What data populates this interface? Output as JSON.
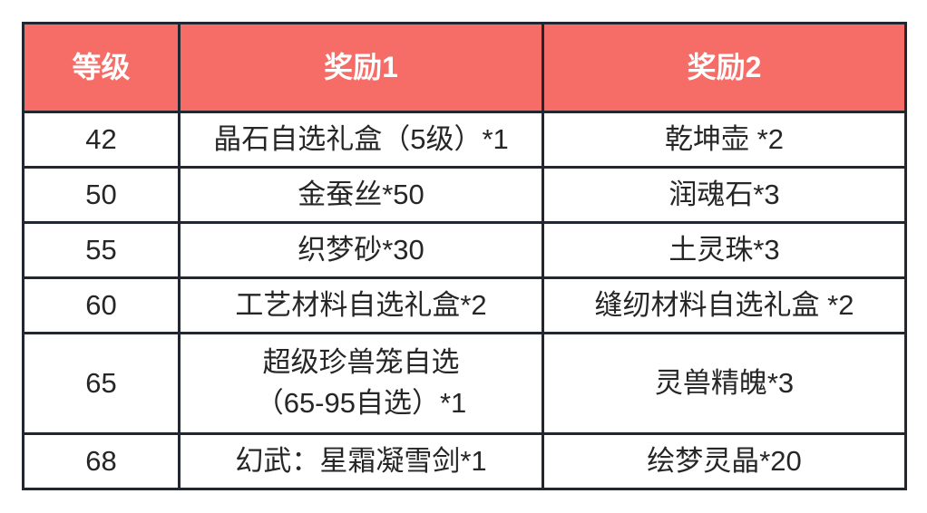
{
  "table": {
    "headers": [
      "等级",
      "奖励1",
      "奖励2"
    ],
    "rows": [
      {
        "level": "42",
        "reward1": "晶石自选礼盒（5级）*1",
        "reward2": "乾坤壶 *2"
      },
      {
        "level": "50",
        "reward1": "金蚕丝*50",
        "reward2": "润魂石*3"
      },
      {
        "level": "55",
        "reward1": "织梦砂*30",
        "reward2": "土灵珠*3"
      },
      {
        "level": "60",
        "reward1": "工艺材料自选礼盒*2",
        "reward2": "缝纫材料自选礼盒 *2"
      },
      {
        "level": "65",
        "reward1": "超级珍兽笼自选\n（65-95自选）*1",
        "reward2": "灵兽精魄*3"
      },
      {
        "level": "68",
        "reward1": "幻武：星霜凝雪剑*1",
        "reward2": "绘梦灵晶*20"
      }
    ],
    "colors": {
      "page_bg": "#ffffff",
      "header_bg": "#f66c66",
      "header_text": "#ffffff",
      "border": "#22262e",
      "cell_text": "#262626"
    }
  },
  "chart_data": {
    "type": "table",
    "title": "",
    "columns": [
      "等级",
      "奖励1",
      "奖励2"
    ],
    "rows": [
      [
        "42",
        "晶石自选礼盒（5级）*1",
        "乾坤壶 *2"
      ],
      [
        "50",
        "金蚕丝*50",
        "润魂石*3"
      ],
      [
        "55",
        "织梦砂*30",
        "土灵珠*3"
      ],
      [
        "60",
        "工艺材料自选礼盒*2",
        "缝纫材料自选礼盒 *2"
      ],
      [
        "65",
        "超级珍兽笼自选（65-95自选）*1",
        "灵兽精魄*3"
      ],
      [
        "68",
        "幻武：星霜凝雪剑*1",
        "绘梦灵晶*20"
      ]
    ]
  }
}
